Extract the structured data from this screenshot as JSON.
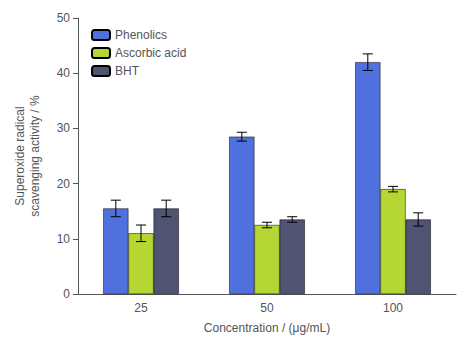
{
  "chart_data": {
    "type": "bar",
    "categories": [
      "25",
      "50",
      "100"
    ],
    "series": [
      {
        "name": "Phenolics",
        "values": [
          15.5,
          28.5,
          42.0
        ],
        "errors": [
          1.5,
          0.8,
          1.5
        ]
      },
      {
        "name": "Ascorbic acid",
        "values": [
          11.0,
          12.5,
          19.0
        ],
        "errors": [
          1.5,
          0.5,
          0.5
        ]
      },
      {
        "name": "BHT",
        "values": [
          15.5,
          13.5,
          13.5
        ],
        "errors": [
          1.5,
          0.5,
          1.2
        ]
      }
    ],
    "xlabel": "Concentration / (μg/mL)",
    "ylabel": "Superoxide radical\nscavenging activity / %",
    "ylim": [
      0,
      50
    ],
    "yticks": [
      0,
      10,
      20,
      30,
      40,
      50
    ],
    "grid": false,
    "legend": "upper left"
  }
}
